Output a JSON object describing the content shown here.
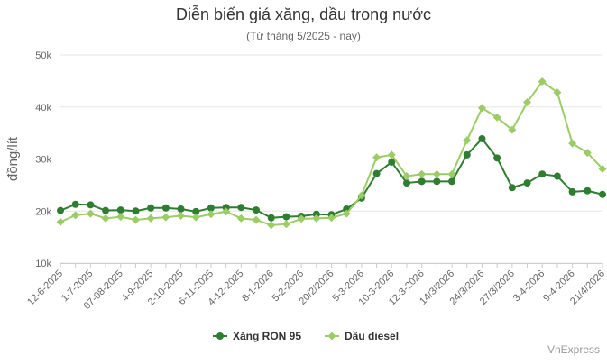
{
  "chart_data": {
    "type": "line",
    "title": "Diễn biến giá xăng, dầu trong nước",
    "subtitle": "(Từ tháng 5/2025 - nay)",
    "ylabel": "đồng/lít",
    "xlabel": "",
    "ylim": [
      10000,
      50000
    ],
    "yticks": [
      {
        "value": 10000,
        "label": "10k"
      },
      {
        "value": 20000,
        "label": "20k"
      },
      {
        "value": 30000,
        "label": "30k"
      },
      {
        "value": 40000,
        "label": "40k"
      },
      {
        "value": 50000,
        "label": "50k"
      }
    ],
    "grid": true,
    "legend": "bottom-center",
    "x": [
      "12-6-2025",
      "",
      "1-7-2025",
      "",
      "07-08-2025",
      "",
      "4-9-2025",
      "",
      "2-10-2025",
      "",
      "6-11-2025",
      "",
      "4-12-2025",
      "",
      "8-1-2026",
      "",
      "5-2-2026",
      "",
      "20/2/2026",
      "",
      "5-3-2026",
      "",
      "10-3-2026",
      "",
      "12-3-2026",
      "",
      "14/3/2026",
      "",
      "24/3/2026",
      "",
      "27/3/2026",
      "",
      "3-4-2026",
      "",
      "9-4-2026",
      "",
      "21/4/2026"
    ],
    "series": [
      {
        "name": "Xăng RON 95",
        "color": "#2e7d32",
        "values": [
          20100,
          21300,
          21200,
          20100,
          20200,
          20000,
          20600,
          20600,
          20400,
          19900,
          20600,
          20700,
          20700,
          20200,
          18700,
          18900,
          19000,
          19400,
          19300,
          20400,
          22500,
          27200,
          29400,
          25400,
          25700,
          25700,
          25700,
          30800,
          33900,
          30200,
          24500,
          25400,
          27100,
          26700,
          23700,
          23900,
          23200
        ]
      },
      {
        "name": "Dầu diesel",
        "color": "#9ccc65",
        "values": [
          17900,
          19200,
          19500,
          18600,
          18900,
          18300,
          18600,
          18800,
          19100,
          18800,
          19400,
          19900,
          18600,
          18300,
          17300,
          17500,
          18500,
          18600,
          18700,
          19500,
          23000,
          30300,
          30800,
          26700,
          27100,
          27100,
          27100,
          33600,
          39800,
          38000,
          35600,
          40900,
          44900,
          42800,
          33000,
          31200,
          28100
        ]
      }
    ]
  },
  "credit": "VnExpress"
}
